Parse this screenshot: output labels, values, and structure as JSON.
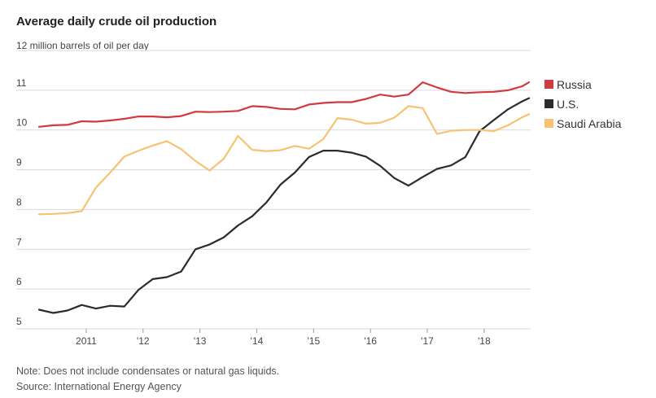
{
  "chart_data": {
    "type": "line",
    "title": "Average daily crude oil production",
    "ylabel": "12 million barrels of oil per day",
    "ylim": [
      5,
      12
    ],
    "yticks": [
      5,
      6,
      7,
      8,
      9,
      10,
      11
    ],
    "ytick_labels": [
      "5",
      "6",
      "7",
      "8",
      "9",
      "10",
      "11"
    ],
    "xlim": [
      2010.17,
      2018.79
    ],
    "xticks": [
      2011,
      2012,
      2013,
      2014,
      2015,
      2016,
      2017,
      2018
    ],
    "xtick_labels": [
      "2011",
      "'12",
      "'13",
      "'14",
      "'15",
      "'16",
      "'17",
      "'18"
    ],
    "grid": true,
    "legend_position": "right",
    "series": [
      {
        "name": "Russia",
        "color": "#d13b3f",
        "x": [
          2010.17,
          2010.42,
          2010.67,
          2010.92,
          2011.17,
          2011.42,
          2011.67,
          2011.92,
          2012.17,
          2012.42,
          2012.67,
          2012.92,
          2013.17,
          2013.42,
          2013.67,
          2013.92,
          2014.17,
          2014.42,
          2014.67,
          2014.92,
          2015.17,
          2015.42,
          2015.67,
          2015.92,
          2016.17,
          2016.42,
          2016.67,
          2016.92,
          2017.17,
          2017.42,
          2017.67,
          2017.92,
          2018.17,
          2018.42,
          2018.67,
          2018.79
        ],
        "values": [
          10.08,
          10.12,
          10.13,
          10.22,
          10.21,
          10.24,
          10.28,
          10.34,
          10.34,
          10.32,
          10.35,
          10.46,
          10.45,
          10.46,
          10.48,
          10.6,
          10.58,
          10.53,
          10.52,
          10.64,
          10.68,
          10.7,
          10.7,
          10.78,
          10.89,
          10.84,
          10.89,
          11.2,
          11.07,
          10.96,
          10.93,
          10.95,
          10.96,
          11.0,
          11.1,
          11.2
        ]
      },
      {
        "name": "U.S.",
        "color": "#2b2b2b",
        "x": [
          2010.17,
          2010.42,
          2010.67,
          2010.92,
          2011.17,
          2011.42,
          2011.67,
          2011.92,
          2012.17,
          2012.42,
          2012.67,
          2012.92,
          2013.17,
          2013.42,
          2013.67,
          2013.92,
          2014.17,
          2014.42,
          2014.67,
          2014.92,
          2015.17,
          2015.42,
          2015.67,
          2015.92,
          2016.17,
          2016.42,
          2016.67,
          2016.92,
          2017.17,
          2017.42,
          2017.67,
          2017.92,
          2018.17,
          2018.42,
          2018.67,
          2018.79
        ],
        "values": [
          5.48,
          5.4,
          5.46,
          5.6,
          5.51,
          5.58,
          5.56,
          5.98,
          6.25,
          6.3,
          6.44,
          7.0,
          7.12,
          7.3,
          7.6,
          7.83,
          8.18,
          8.63,
          8.93,
          9.32,
          9.48,
          9.48,
          9.43,
          9.33,
          9.1,
          8.79,
          8.6,
          8.82,
          9.02,
          9.11,
          9.32,
          9.97,
          10.25,
          10.52,
          10.72,
          10.8
        ]
      },
      {
        "name": "Saudi Arabia",
        "color": "#f7c272",
        "x": [
          2010.17,
          2010.42,
          2010.67,
          2010.92,
          2011.17,
          2011.42,
          2011.67,
          2011.92,
          2012.17,
          2012.42,
          2012.67,
          2012.92,
          2013.17,
          2013.42,
          2013.67,
          2013.92,
          2014.17,
          2014.42,
          2014.67,
          2014.92,
          2015.17,
          2015.42,
          2015.67,
          2015.92,
          2016.17,
          2016.42,
          2016.67,
          2016.92,
          2017.17,
          2017.42,
          2017.67,
          2017.92,
          2018.17,
          2018.42,
          2018.67,
          2018.79
        ],
        "values": [
          7.88,
          7.89,
          7.91,
          7.96,
          8.55,
          8.93,
          9.33,
          9.48,
          9.61,
          9.72,
          9.52,
          9.22,
          8.98,
          9.28,
          9.85,
          9.5,
          9.47,
          9.49,
          9.6,
          9.53,
          9.77,
          10.3,
          10.26,
          10.16,
          10.18,
          10.31,
          10.6,
          10.55,
          9.9,
          9.98,
          10.0,
          10.0,
          9.97,
          10.12,
          10.32,
          10.4
        ]
      }
    ]
  },
  "footer": {
    "note": "Note: Does not include condensates or natural gas liquids.",
    "source": "Source: International Energy Agency"
  }
}
